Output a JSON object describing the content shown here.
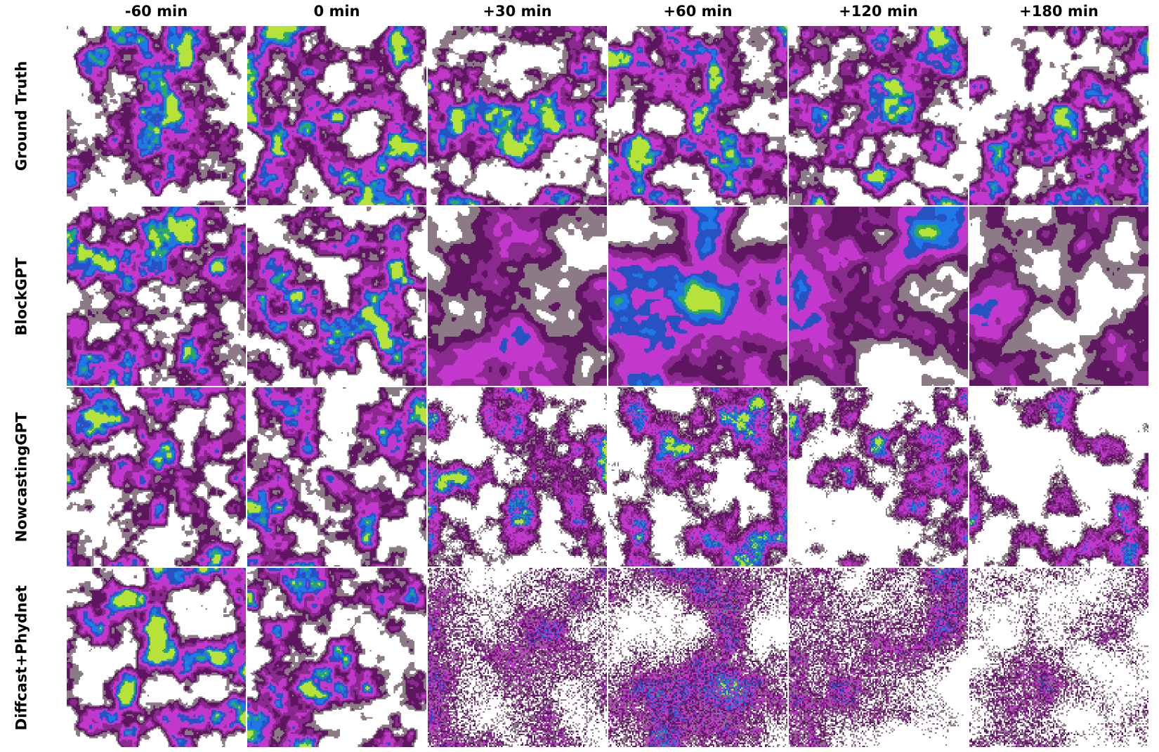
{
  "columns": [
    "-60 min",
    "0 min",
    "+30 min",
    "+60 min",
    "+120 min",
    "+180 min"
  ],
  "rows": [
    "Ground Truth",
    "BlockGPT",
    "NowcastingGPT",
    "Diffcast+Phydnet"
  ],
  "colormap": [
    "#ffffff",
    "#8c7a86",
    "#5f1661",
    "#8a2a8e",
    "#c238cc",
    "#2652c2",
    "#1f78e6",
    "#2aa86a",
    "#b6e23a"
  ]
}
